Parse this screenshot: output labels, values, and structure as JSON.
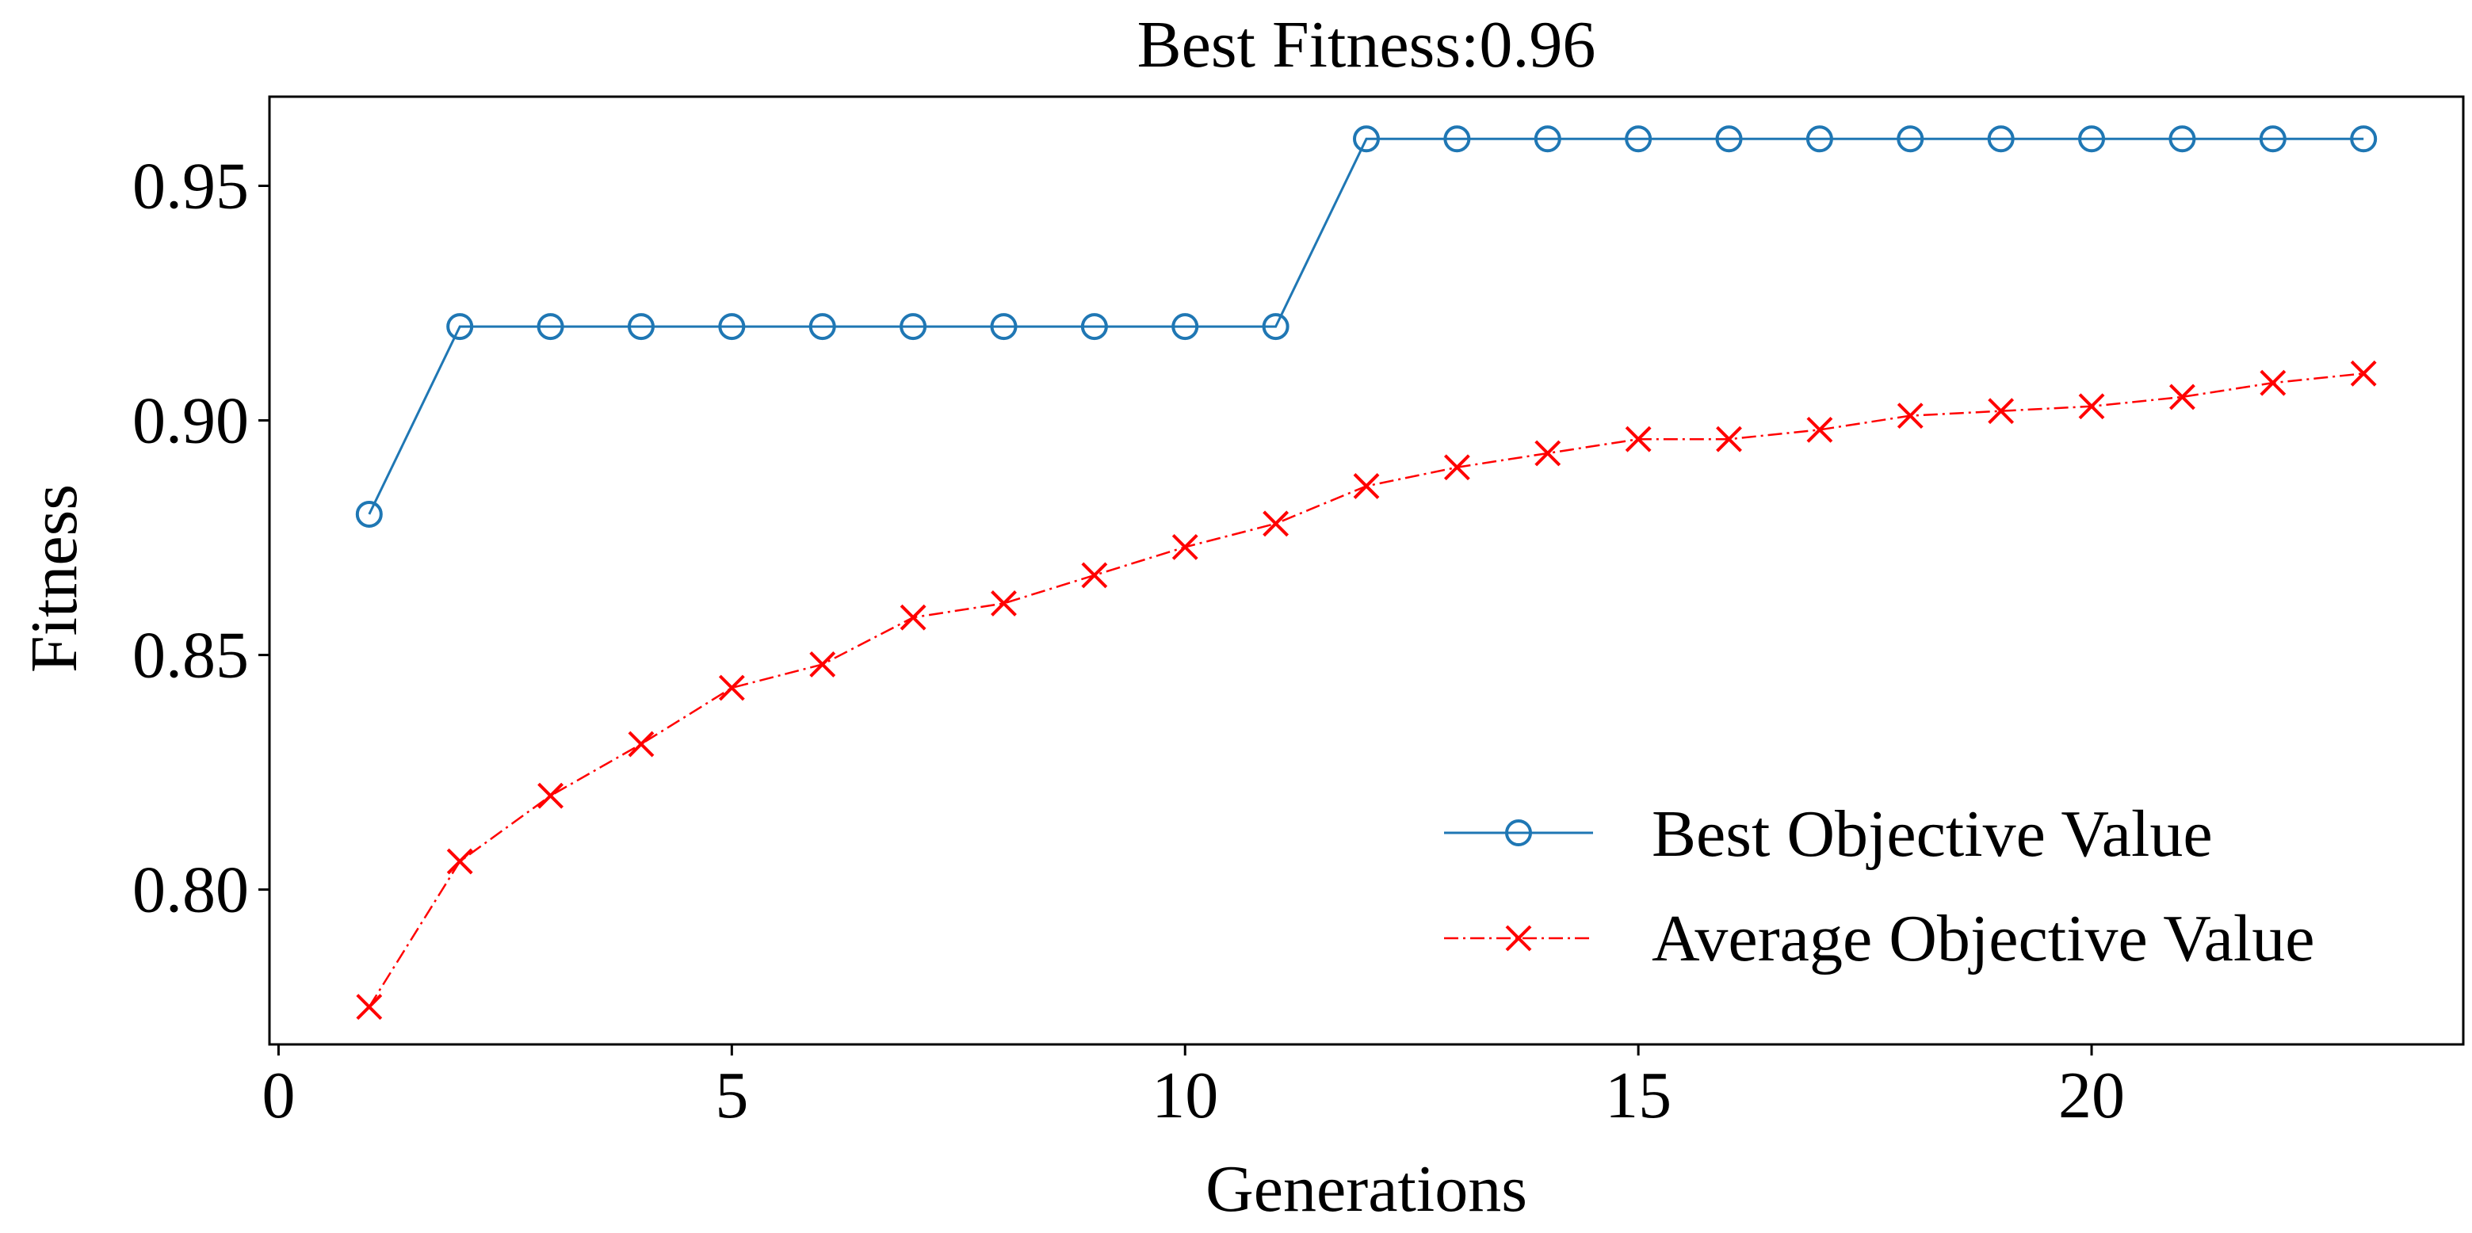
{
  "chart_data": {
    "type": "line",
    "title": "Best Fitness:0.96",
    "xlabel": "Generations",
    "ylabel": "Fitness",
    "xlim": [
      -0.1,
      24.1
    ],
    "ylim": [
      0.767,
      0.969
    ],
    "x": [
      1,
      2,
      3,
      4,
      5,
      6,
      7,
      8,
      9,
      10,
      11,
      12,
      13,
      14,
      15,
      16,
      17,
      18,
      19,
      20,
      21,
      22,
      23
    ],
    "xticks": [
      0,
      5,
      10,
      15,
      20
    ],
    "xtick_labels": [
      "0",
      "5",
      "10",
      "15",
      "20"
    ],
    "yticks": [
      0.8,
      0.85,
      0.9,
      0.95
    ],
    "ytick_labels": [
      "0.80",
      "0.85",
      "0.90",
      "0.95"
    ],
    "grid": false,
    "legend_position": "lower-right",
    "series": [
      {
        "name": "Best Objective Value",
        "color": "#1f77b4",
        "marker": "circle",
        "linestyle": "solid",
        "values": [
          0.88,
          0.92,
          0.92,
          0.92,
          0.92,
          0.92,
          0.92,
          0.92,
          0.92,
          0.92,
          0.92,
          0.96,
          0.96,
          0.96,
          0.96,
          0.96,
          0.96,
          0.96,
          0.96,
          0.96,
          0.96,
          0.96,
          0.96
        ]
      },
      {
        "name": "Average Objective Value",
        "color": "#ff0000",
        "marker": "x",
        "linestyle": "dashdot",
        "values": [
          0.775,
          0.806,
          0.82,
          0.831,
          0.843,
          0.848,
          0.858,
          0.861,
          0.867,
          0.873,
          0.878,
          0.886,
          0.89,
          0.893,
          0.896,
          0.896,
          0.898,
          0.901,
          0.902,
          0.903,
          0.905,
          0.908,
          0.91
        ]
      }
    ]
  }
}
